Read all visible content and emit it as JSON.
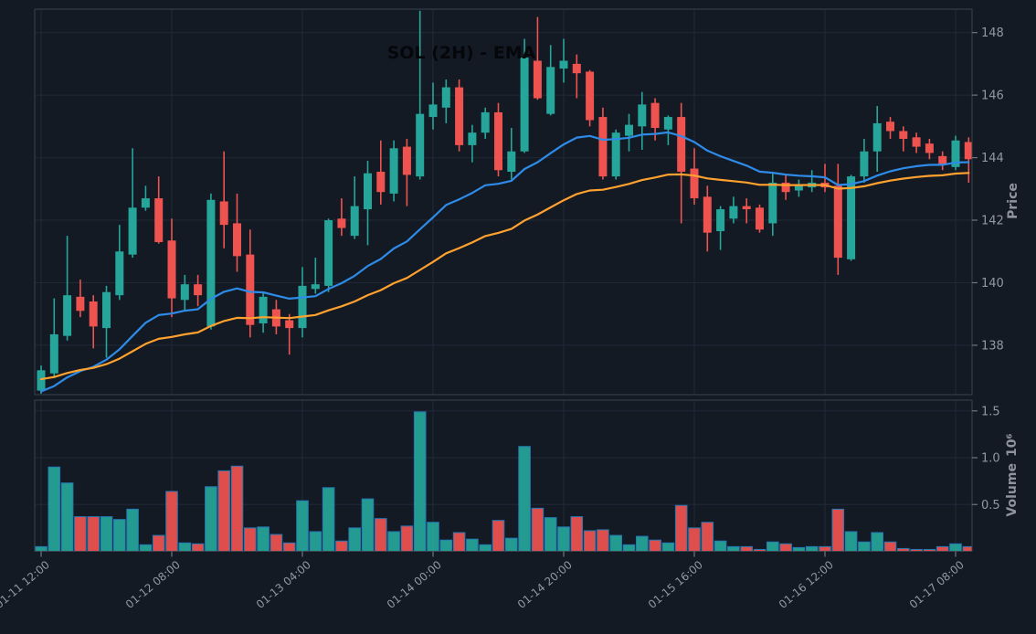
{
  "title": "SOL (2H) - EMA",
  "colors": {
    "background": "#131a24",
    "grid": "#212939",
    "spine": "#3a414e",
    "tick": "#6f7683",
    "tick_label": "#9298a3",
    "axis_label": "#8e939e",
    "title": "#05070b",
    "up": "#26a69a",
    "down": "#ef5350",
    "volume_edge": "#2579b5",
    "ema_fast": "#2e8be8",
    "ema_slow": "#ffa12e"
  },
  "chart_data": {
    "type": "candlestick",
    "symbol": "SOL",
    "interval": "2H",
    "title": "SOL (2H) - EMA",
    "panels": [
      "price",
      "volume"
    ],
    "grid": true,
    "legend": "none",
    "price_axis": {
      "label": "Price",
      "side": "right",
      "ticks": [
        138,
        140,
        142,
        144,
        146,
        148
      ],
      "range": [
        136.42,
        148.75
      ]
    },
    "volume_axis": {
      "label": "Volume",
      "exponent_label": "10⁶",
      "side": "right",
      "ticks": [
        0.5,
        1.0,
        1.5
      ],
      "range": [
        0,
        1.615
      ]
    },
    "x_axis": {
      "ticks": [
        {
          "index": 0,
          "label": "01-11 12:00"
        },
        {
          "index": 10,
          "label": "01-12 08:00"
        },
        {
          "index": 20,
          "label": "01-13 04:00"
        },
        {
          "index": 30,
          "label": "01-14 00:00"
        },
        {
          "index": 40,
          "label": "01-14 20:00"
        },
        {
          "index": 50,
          "label": "01-15 16:00"
        },
        {
          "index": 60,
          "label": "01-16 12:00"
        },
        {
          "index": 70,
          "label": "01-17 08:00"
        }
      ]
    },
    "indicators": [
      {
        "name": "EMA fast",
        "type": "ema",
        "period": 20,
        "seed": 136.45,
        "color": "#2e8be8"
      },
      {
        "name": "EMA slow",
        "type": "ema",
        "period": 40,
        "seed": 136.9,
        "color": "#ffa12e"
      }
    ],
    "columns": [
      "open",
      "high",
      "low",
      "close",
      "volume_millions"
    ],
    "candles": [
      [
        136.55,
        137.35,
        136.45,
        137.2,
        0.05
      ],
      [
        137.1,
        139.5,
        136.95,
        138.35,
        0.9
      ],
      [
        138.3,
        141.5,
        138.15,
        139.6,
        0.73
      ],
      [
        139.55,
        140.1,
        138.9,
        139.1,
        0.37
      ],
      [
        139.4,
        139.6,
        137.9,
        138.6,
        0.37
      ],
      [
        138.55,
        139.9,
        137.6,
        139.7,
        0.37
      ],
      [
        139.6,
        141.85,
        139.45,
        141.0,
        0.34
      ],
      [
        140.9,
        144.3,
        140.8,
        142.4,
        0.45
      ],
      [
        142.4,
        143.1,
        142.3,
        142.7,
        0.07
      ],
      [
        142.7,
        143.4,
        141.25,
        141.3,
        0.17
      ],
      [
        141.35,
        142.05,
        138.9,
        139.5,
        0.64
      ],
      [
        139.45,
        140.25,
        139.1,
        139.95,
        0.09
      ],
      [
        139.95,
        140.25,
        139.25,
        139.6,
        0.08
      ],
      [
        138.6,
        142.85,
        138.5,
        142.65,
        0.69
      ],
      [
        142.6,
        144.2,
        141.1,
        141.85,
        0.86
      ],
      [
        141.9,
        142.85,
        140.35,
        140.85,
        0.91
      ],
      [
        140.9,
        141.7,
        138.25,
        138.65,
        0.25
      ],
      [
        138.7,
        139.7,
        138.4,
        139.55,
        0.26
      ],
      [
        139.15,
        139.45,
        138.35,
        138.6,
        0.18
      ],
      [
        138.8,
        139.0,
        137.7,
        138.55,
        0.09
      ],
      [
        138.55,
        140.5,
        138.25,
        139.9,
        0.54
      ],
      [
        139.8,
        140.8,
        139.65,
        139.95,
        0.21
      ],
      [
        139.9,
        142.05,
        139.7,
        142.0,
        0.68
      ],
      [
        142.05,
        142.7,
        141.5,
        141.75,
        0.11
      ],
      [
        141.5,
        143.4,
        141.4,
        142.45,
        0.25
      ],
      [
        142.35,
        143.9,
        141.2,
        143.5,
        0.56
      ],
      [
        143.55,
        144.55,
        142.5,
        142.9,
        0.35
      ],
      [
        142.85,
        144.55,
        142.6,
        144.3,
        0.21
      ],
      [
        144.35,
        144.6,
        142.45,
        143.45,
        0.27
      ],
      [
        143.4,
        148.7,
        143.3,
        145.4,
        1.49
      ],
      [
        145.3,
        146.4,
        144.9,
        145.7,
        0.31
      ],
      [
        145.6,
        146.5,
        145.1,
        146.25,
        0.12
      ],
      [
        146.25,
        146.5,
        144.2,
        144.4,
        0.2
      ],
      [
        144.4,
        145.05,
        143.85,
        144.8,
        0.13
      ],
      [
        144.8,
        145.6,
        144.6,
        145.45,
        0.07
      ],
      [
        145.45,
        145.75,
        143.4,
        143.6,
        0.33
      ],
      [
        143.55,
        144.95,
        143.3,
        144.2,
        0.14
      ],
      [
        144.2,
        147.8,
        144.15,
        147.2,
        1.12
      ],
      [
        147.1,
        148.5,
        145.85,
        145.9,
        0.46
      ],
      [
        145.4,
        147.6,
        145.35,
        146.9,
        0.36
      ],
      [
        146.85,
        147.8,
        146.4,
        147.1,
        0.26
      ],
      [
        147.0,
        147.3,
        145.9,
        146.7,
        0.37
      ],
      [
        146.75,
        146.8,
        145.0,
        145.2,
        0.22
      ],
      [
        145.3,
        145.6,
        143.3,
        143.4,
        0.23
      ],
      [
        143.4,
        144.9,
        143.3,
        144.8,
        0.17
      ],
      [
        144.7,
        145.4,
        144.2,
        145.05,
        0.07
      ],
      [
        145.0,
        146.1,
        144.25,
        145.7,
        0.16
      ],
      [
        145.75,
        145.9,
        144.55,
        144.95,
        0.12
      ],
      [
        144.9,
        145.35,
        144.4,
        145.3,
        0.09
      ],
      [
        145.3,
        145.75,
        141.9,
        143.55,
        0.49
      ],
      [
        143.65,
        144.3,
        142.5,
        142.7,
        0.25
      ],
      [
        142.75,
        143.1,
        141.0,
        141.6,
        0.31
      ],
      [
        141.65,
        142.45,
        141.05,
        142.35,
        0.11
      ],
      [
        142.05,
        142.75,
        141.9,
        142.45,
        0.05
      ],
      [
        142.45,
        142.7,
        141.9,
        142.35,
        0.05
      ],
      [
        142.4,
        142.5,
        141.6,
        141.7,
        0.02
      ],
      [
        141.9,
        143.55,
        141.5,
        143.2,
        0.1
      ],
      [
        143.2,
        143.45,
        142.65,
        142.9,
        0.08
      ],
      [
        142.95,
        143.3,
        142.75,
        143.1,
        0.04
      ],
      [
        143.05,
        143.6,
        142.9,
        143.2,
        0.05
      ],
      [
        143.2,
        143.8,
        142.9,
        143.05,
        0.05
      ],
      [
        143.1,
        143.8,
        140.25,
        140.8,
        0.45
      ],
      [
        140.75,
        143.45,
        140.7,
        143.4,
        0.21
      ],
      [
        143.4,
        144.6,
        143.2,
        144.2,
        0.1
      ],
      [
        144.2,
        145.65,
        143.55,
        145.1,
        0.2
      ],
      [
        145.15,
        145.3,
        144.6,
        144.85,
        0.1
      ],
      [
        144.85,
        145.0,
        144.2,
        144.6,
        0.03
      ],
      [
        144.65,
        144.8,
        144.15,
        144.35,
        0.02
      ],
      [
        144.45,
        144.6,
        143.95,
        144.15,
        0.02
      ],
      [
        144.05,
        144.2,
        143.6,
        143.8,
        0.05
      ],
      [
        143.7,
        144.7,
        143.6,
        144.55,
        0.08
      ],
      [
        144.5,
        144.65,
        143.2,
        143.95,
        0.05
      ]
    ]
  }
}
